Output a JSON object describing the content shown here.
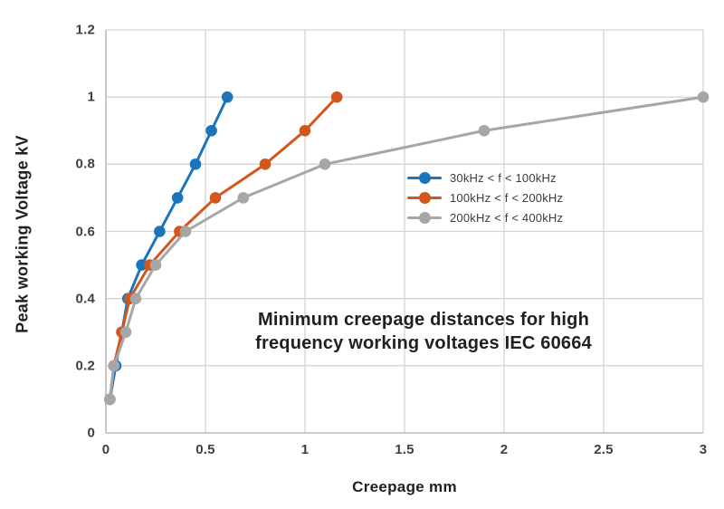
{
  "chart_data": {
    "type": "line",
    "title": "Minimum creepage distances for high frequency working voltages IEC 60664",
    "title_lines": {
      "line1": "Minimum creepage distances for high",
      "line2": "frequency working voltages IEC 60664"
    },
    "xlabel": "Creepage mm",
    "ylabel": "Peak working Voltage kV",
    "xlim": [
      0,
      3
    ],
    "ylim": [
      0,
      1.2
    ],
    "xticks": {
      "values": [
        0,
        0.5,
        1,
        1.5,
        2,
        2.5,
        3
      ],
      "labels": [
        "0",
        "0.5",
        "1",
        "1.5",
        "2",
        "2.5",
        "3"
      ]
    },
    "yticks": {
      "values": [
        0,
        0.2,
        0.4,
        0.6,
        0.8,
        1,
        1.2
      ],
      "labels": [
        "0",
        "0.2",
        "0.4",
        "0.6",
        "0.8",
        "1",
        "1.2"
      ]
    },
    "grid": true,
    "legend_position": "inside-right",
    "series": [
      {
        "name": "30kHz < f < 100kHz",
        "color": "#1B75BC",
        "points": [
          [
            0.02,
            0.1
          ],
          [
            0.05,
            0.2
          ],
          [
            0.08,
            0.3
          ],
          [
            0.11,
            0.4
          ],
          [
            0.18,
            0.5
          ],
          [
            0.27,
            0.6
          ],
          [
            0.36,
            0.7
          ],
          [
            0.45,
            0.8
          ],
          [
            0.53,
            0.9
          ],
          [
            0.61,
            1.0
          ]
        ]
      },
      {
        "name": "100kHz < f < 200kHz",
        "color": "#D2571E",
        "points": [
          [
            0.02,
            0.1
          ],
          [
            0.04,
            0.2
          ],
          [
            0.08,
            0.3
          ],
          [
            0.12,
            0.4
          ],
          [
            0.22,
            0.5
          ],
          [
            0.37,
            0.6
          ],
          [
            0.55,
            0.7
          ],
          [
            0.8,
            0.8
          ],
          [
            1.0,
            0.9
          ],
          [
            1.16,
            1.0
          ]
        ]
      },
      {
        "name": "200kHz < f < 400kHz",
        "color": "#A6A6A6",
        "points": [
          [
            0.02,
            0.1
          ],
          [
            0.04,
            0.2
          ],
          [
            0.1,
            0.3
          ],
          [
            0.15,
            0.4
          ],
          [
            0.25,
            0.5
          ],
          [
            0.4,
            0.6
          ],
          [
            0.69,
            0.7
          ],
          [
            1.1,
            0.8
          ],
          [
            1.9,
            0.9
          ],
          [
            3.0,
            1.0
          ]
        ]
      }
    ],
    "style_colors": {
      "grid": "#D4D4D4",
      "axis": "#BDBDBD",
      "tick_text": "#3F3F3F",
      "label_text": "#231F20"
    }
  }
}
